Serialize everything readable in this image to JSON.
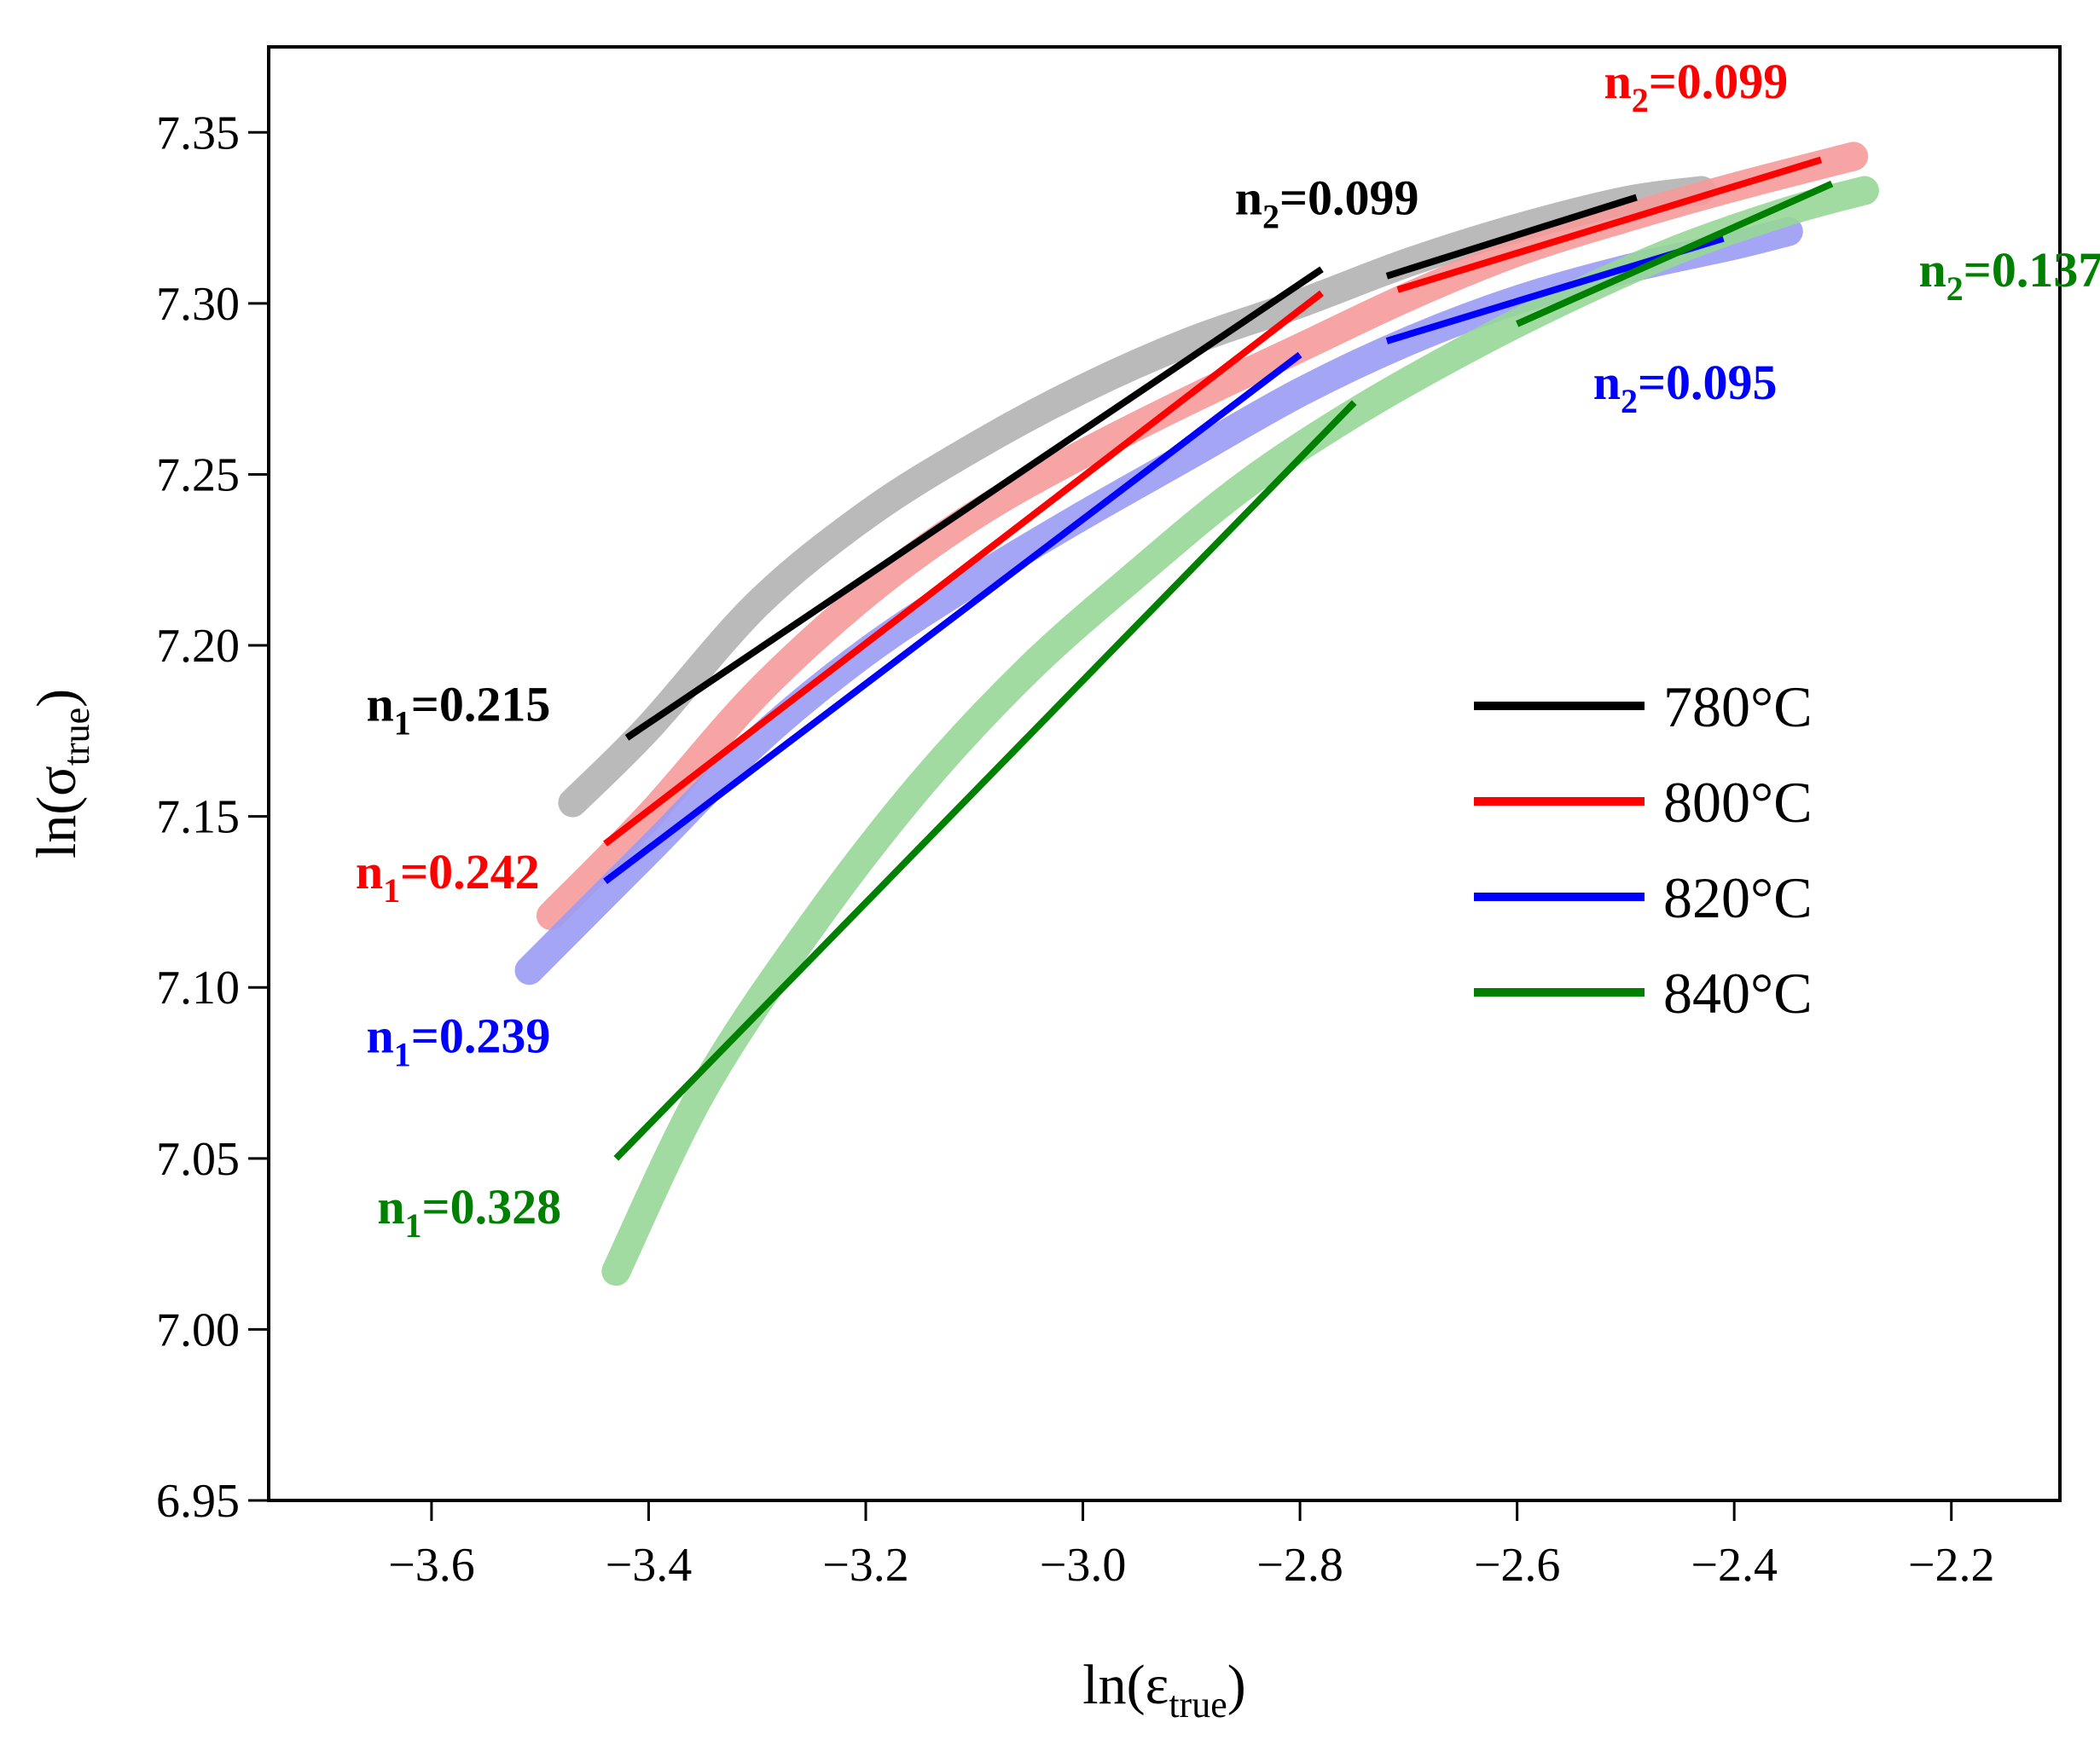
{
  "chart_data": {
    "type": "line",
    "title": "",
    "xlabel": {
      "base": "ln(ε",
      "sub": "true",
      "close": ")"
    },
    "ylabel": {
      "base": "ln(σ",
      "sub": "true",
      "close": ")"
    },
    "xlim": [
      -3.75,
      -2.1
    ],
    "ylim": [
      6.95,
      7.375
    ],
    "xticks": [
      -3.6,
      -3.4,
      -3.2,
      -3.0,
      -2.8,
      -2.6,
      -2.4,
      -2.2
    ],
    "xtick_labels": [
      "−3.6",
      "−3.4",
      "−3.2",
      "−3.0",
      "−2.8",
      "−2.6",
      "−2.4",
      "−2.2"
    ],
    "yticks": [
      6.95,
      7.0,
      7.05,
      7.1,
      7.15,
      7.2,
      7.25,
      7.3,
      7.35
    ],
    "ytick_labels": [
      "6.95",
      "7.00",
      "7.05",
      "7.10",
      "7.15",
      "7.20",
      "7.25",
      "7.30",
      "7.35"
    ],
    "grid": false,
    "legend_position": "center-right",
    "series": [
      {
        "name": "780°C",
        "color": "#000000",
        "band_color": "#b3b3b3",
        "curve": [
          [
            -3.47,
            7.154
          ],
          [
            -3.4,
            7.176
          ],
          [
            -3.3,
            7.212
          ],
          [
            -3.2,
            7.238
          ],
          [
            -3.1,
            7.258
          ],
          [
            -3.0,
            7.275
          ],
          [
            -2.9,
            7.289
          ],
          [
            -2.8,
            7.3
          ],
          [
            -2.7,
            7.312
          ],
          [
            -2.6,
            7.322
          ],
          [
            -2.5,
            7.33
          ],
          [
            -2.43,
            7.333
          ]
        ],
        "fit1": [
          [
            -3.42,
            7.173
          ],
          [
            -2.78,
            7.31
          ]
        ],
        "fit2": [
          [
            -2.72,
            7.308
          ],
          [
            -2.49,
            7.331
          ]
        ],
        "n1_label": {
          "n": "n",
          "sub": "1",
          "value": "=0.215",
          "x": -3.66,
          "y": 7.178
        },
        "n2_label": {
          "n": "n",
          "sub": "2",
          "value": "=0.099",
          "x": -2.86,
          "y": 7.326
        }
      },
      {
        "name": "800°C",
        "color": "#ff0000",
        "band_color": "#f59a9a",
        "curve": [
          [
            -3.49,
            7.121
          ],
          [
            -3.4,
            7.15
          ],
          [
            -3.3,
            7.186
          ],
          [
            -3.2,
            7.215
          ],
          [
            -3.1,
            7.238
          ],
          [
            -3.0,
            7.256
          ],
          [
            -2.9,
            7.272
          ],
          [
            -2.8,
            7.287
          ],
          [
            -2.7,
            7.302
          ],
          [
            -2.6,
            7.315
          ],
          [
            -2.5,
            7.325
          ],
          [
            -2.4,
            7.334
          ],
          [
            -2.29,
            7.343
          ]
        ],
        "fit1": [
          [
            -3.44,
            7.142
          ],
          [
            -2.78,
            7.303
          ]
        ],
        "fit2": [
          [
            -2.71,
            7.304
          ],
          [
            -2.32,
            7.342
          ]
        ],
        "n1_label": {
          "n": "n",
          "sub": "1",
          "value": "=0.242",
          "x": -3.67,
          "y": 7.129
        },
        "n2_label": {
          "n": "n",
          "sub": "2",
          "value": "=0.099",
          "x": -2.52,
          "y": 7.36
        }
      },
      {
        "name": "820°C",
        "color": "#0000ff",
        "band_color": "#9b9bf5",
        "curve": [
          [
            -3.51,
            7.105
          ],
          [
            -3.4,
            7.14
          ],
          [
            -3.3,
            7.172
          ],
          [
            -3.2,
            7.198
          ],
          [
            -3.1,
            7.219
          ],
          [
            -3.0,
            7.238
          ],
          [
            -2.9,
            7.256
          ],
          [
            -2.8,
            7.274
          ],
          [
            -2.7,
            7.289
          ],
          [
            -2.6,
            7.301
          ],
          [
            -2.5,
            7.31
          ],
          [
            -2.4,
            7.317
          ],
          [
            -2.35,
            7.321
          ]
        ],
        "fit1": [
          [
            -3.44,
            7.131
          ],
          [
            -2.8,
            7.285
          ]
        ],
        "fit2": [
          [
            -2.72,
            7.289
          ],
          [
            -2.41,
            7.319
          ]
        ],
        "n1_label": {
          "n": "n",
          "sub": "1",
          "value": "=0.239",
          "x": -3.66,
          "y": 7.081
        },
        "n2_label": {
          "n": "n",
          "sub": "2",
          "value": "=0.095",
          "x": -2.53,
          "y": 7.272
        }
      },
      {
        "name": "840°C",
        "color": "#008000",
        "band_color": "#97d797",
        "curve": [
          [
            -3.43,
            7.017
          ],
          [
            -3.35,
            7.07
          ],
          [
            -3.25,
            7.118
          ],
          [
            -3.15,
            7.159
          ],
          [
            -3.05,
            7.193
          ],
          [
            -2.95,
            7.221
          ],
          [
            -2.85,
            7.247
          ],
          [
            -2.75,
            7.268
          ],
          [
            -2.65,
            7.286
          ],
          [
            -2.55,
            7.302
          ],
          [
            -2.45,
            7.316
          ],
          [
            -2.35,
            7.327
          ],
          [
            -2.28,
            7.333
          ]
        ],
        "fit1": [
          [
            -3.43,
            7.05
          ],
          [
            -2.75,
            7.271
          ]
        ],
        "fit2": [
          [
            -2.6,
            7.294
          ],
          [
            -2.31,
            7.335
          ]
        ],
        "n1_label": {
          "n": "n",
          "sub": "1",
          "value": "=0.328",
          "x": -3.65,
          "y": 7.031
        },
        "n2_label": {
          "n": "n",
          "sub": "2",
          "value": "=0.137",
          "x": -2.23,
          "y": 7.305
        }
      }
    ]
  }
}
